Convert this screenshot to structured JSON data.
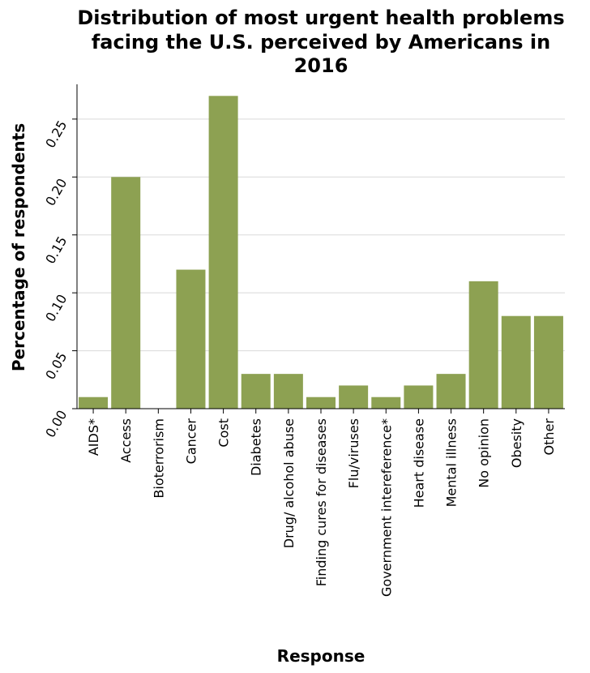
{
  "chart_data": {
    "type": "bar",
    "title": "Distribution of most urgent health problems facing the U.S. perceived by Americans in 2016",
    "title_lines": [
      "Distribution of most urgent health problems",
      "facing the U.S. perceived by Americans in",
      "2016"
    ],
    "xlabel": "Response",
    "ylabel": "Percentage of respondents",
    "categories": [
      "AIDS*",
      "Access",
      "Bioterrorism",
      "Cancer",
      "Cost",
      "Diabetes",
      "Drug/ alcohol abuse",
      "Finding cures for diseases",
      "Flu/viruses",
      "Government intereference*",
      "Heart disease",
      "Mental illness",
      "No opinion",
      "Obesity",
      "Other"
    ],
    "values": [
      0.01,
      0.2,
      0.0,
      0.12,
      0.27,
      0.03,
      0.03,
      0.01,
      0.02,
      0.01,
      0.02,
      0.03,
      0.11,
      0.08,
      0.08
    ],
    "ylim": [
      0,
      0.28
    ],
    "yticks": [
      "0.00",
      "0.05",
      "0.10",
      "0.15",
      "0.20",
      "0.25"
    ],
    "grid": true,
    "bar_color": "#8da152",
    "legend": "none"
  }
}
